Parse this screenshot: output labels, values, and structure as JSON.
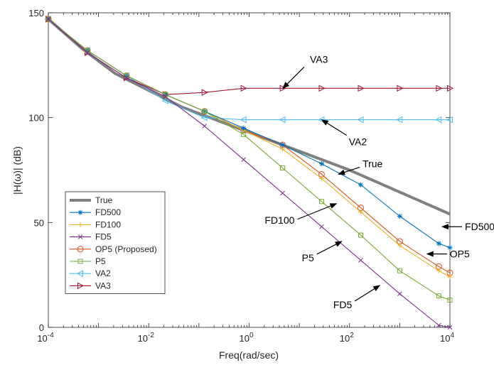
{
  "chart_data": {
    "type": "line",
    "xlabel": "Freq(rad/sec)",
    "ylabel": "|H(ω)| (dB)",
    "xscale": "log",
    "xlim": [
      0.0001,
      10000
    ],
    "ylim": [
      0,
      150
    ],
    "x_tick_labels": [
      {
        "base": "10",
        "exp": "-4",
        "value": 0.0001
      },
      {
        "base": "10",
        "exp": "-2",
        "value": 0.01
      },
      {
        "base": "10",
        "exp": "0",
        "value": 1
      },
      {
        "base": "10",
        "exp": "2",
        "value": 100
      },
      {
        "base": "10",
        "exp": "4",
        "value": 10000
      }
    ],
    "y_tick_labels": [
      "0",
      "50",
      "100",
      "150"
    ],
    "y_ticks": [
      0,
      50,
      100,
      150
    ],
    "grid": false,
    "legend_position": "lower-left",
    "series": [
      {
        "name": "True",
        "color": "#808080",
        "marker": "none",
        "width": "thick",
        "x": [
          0.0001,
          0.000464,
          0.00215,
          0.01,
          0.0464,
          0.215,
          1,
          4.64,
          21.5,
          100,
          464,
          2154,
          10000
        ],
        "y": [
          147,
          133,
          121,
          113,
          105,
          99,
          93,
          87,
          81,
          75,
          68,
          61,
          54
        ]
      },
      {
        "name": "FD500",
        "color": "#0072BD",
        "marker": "star",
        "x": [
          0.0001,
          0.0006,
          0.0036,
          0.0215,
          0.129,
          0.774,
          4.64,
          27.8,
          167,
          1000,
          6000,
          10000
        ],
        "y": [
          147,
          132,
          120,
          111,
          103,
          95,
          87,
          78,
          68,
          53,
          40,
          38
        ]
      },
      {
        "name": "FD100",
        "color": "#EDB120",
        "marker": "plus",
        "x": [
          0.0001,
          0.0006,
          0.0036,
          0.0215,
          0.129,
          0.774,
          4.64,
          27.8,
          167,
          1000,
          6000,
          10000
        ],
        "y": [
          147,
          132,
          120,
          111,
          103,
          94,
          85,
          71,
          55,
          39,
          27,
          24
        ]
      },
      {
        "name": "FD5",
        "color": "#7E2F8E",
        "marker": "x",
        "x": [
          0.0001,
          0.0006,
          0.0036,
          0.0215,
          0.129,
          0.774,
          4.64,
          27.8,
          167,
          1000,
          6000,
          10000
        ],
        "y": [
          147,
          131,
          119,
          110,
          96,
          80,
          64,
          48,
          32,
          16,
          1,
          0
        ]
      },
      {
        "name": "OP5 (Proposed)",
        "color": "#D95319",
        "marker": "circle",
        "x": [
          0.0001,
          0.0006,
          0.0036,
          0.0215,
          0.129,
          0.774,
          4.64,
          27.8,
          167,
          1000,
          6000,
          10000
        ],
        "y": [
          147,
          132,
          120,
          111,
          103,
          94,
          87,
          73,
          57,
          41,
          29,
          26
        ]
      },
      {
        "name": "P5",
        "color": "#77AC30",
        "marker": "square",
        "x": [
          0.0001,
          0.0006,
          0.0036,
          0.0215,
          0.129,
          0.774,
          4.64,
          27.8,
          167,
          1000,
          6000,
          10000
        ],
        "y": [
          147,
          132,
          120,
          111,
          103,
          92,
          76,
          60,
          44,
          27,
          15,
          13
        ]
      },
      {
        "name": "VA2",
        "color": "#4DBEEE",
        "marker": "triangle-left",
        "x": [
          0.0001,
          0.0006,
          0.0036,
          0.0215,
          0.129,
          0.774,
          4.64,
          27.8,
          167,
          1000,
          6000,
          10000
        ],
        "y": [
          147,
          132,
          120,
          108,
          100,
          99,
          99,
          99,
          99,
          99,
          99,
          99
        ]
      },
      {
        "name": "VA3",
        "color": "#A2142F",
        "marker": "triangle-right",
        "x": [
          0.0001,
          0.0006,
          0.0036,
          0.0215,
          0.129,
          0.774,
          4.64,
          27.8,
          167,
          1000,
          6000,
          10000
        ],
        "y": [
          147,
          131,
          119,
          111,
          112,
          114,
          114,
          114,
          114,
          114,
          114,
          114
        ]
      }
    ],
    "annotations": [
      {
        "text": "VA3",
        "tip_x": 4.7,
        "tip_y": 114
      },
      {
        "text": "VA2",
        "tip_x": 28,
        "tip_y": 99
      },
      {
        "text": "True",
        "tip_x": 60,
        "tip_y": 73
      },
      {
        "text": "FD100",
        "tip_x": 55,
        "tip_y": 59
      },
      {
        "text": "P5",
        "tip_x": 70,
        "tip_y": 41
      },
      {
        "text": "FD500",
        "tip_x": 7000,
        "tip_y": 48
      },
      {
        "text": "OP5",
        "tip_x": 3500,
        "tip_y": 35
      },
      {
        "text": "FD5",
        "tip_x": 400,
        "tip_y": 20
      }
    ]
  }
}
